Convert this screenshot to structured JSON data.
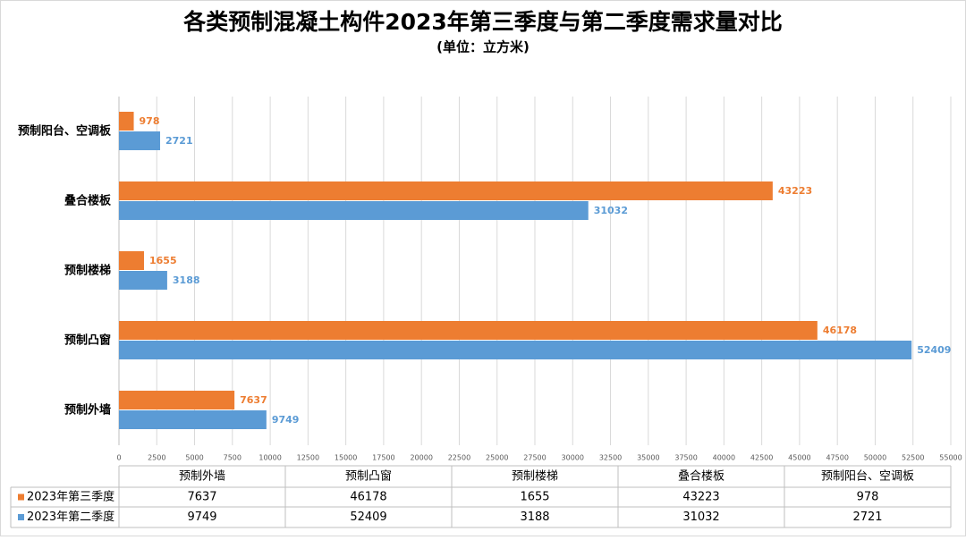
{
  "chart_data": {
    "type": "hbar",
    "title": "各类预制混凝土构件2023年第三季度与第二季度需求量对比",
    "subtitle": "(单位：立方米)",
    "categories": [
      "预制外墙",
      "预制凸窗",
      "预制楼梯",
      "叠合楼板",
      "预制阳台、空调板"
    ],
    "series": [
      {
        "name": "2023年第三季度",
        "color": "#ED7D31",
        "values": [
          7637,
          46178,
          1655,
          43223,
          978
        ]
      },
      {
        "name": "2023年第二季度",
        "color": "#5B9BD5",
        "values": [
          9749,
          52409,
          3188,
          31032,
          2721
        ]
      }
    ],
    "xlim": [
      0,
      55000
    ],
    "xticks": [
      0,
      2500,
      5000,
      7500,
      10000,
      12500,
      15000,
      17500,
      20000,
      22500,
      25000,
      27500,
      30000,
      32500,
      35000,
      37500,
      40000,
      42500,
      45000,
      47500,
      50000,
      52500,
      55000
    ],
    "grid": true,
    "data_table": true
  }
}
